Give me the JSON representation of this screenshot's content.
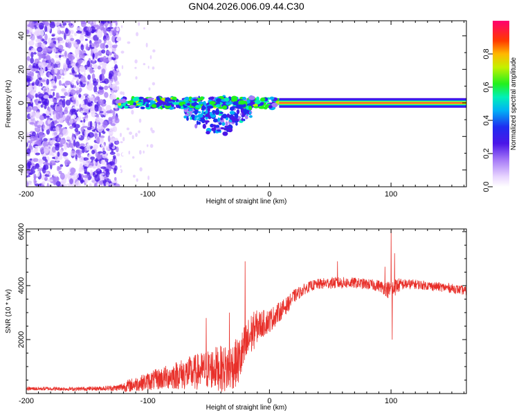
{
  "title": "GN04.2026.006.09.44.C30",
  "colors": {
    "snr_line": "#e8302a",
    "frame": "#000000",
    "noise_purple": "#6a2cf0"
  },
  "chart_data": [
    {
      "type": "heatmap",
      "name": "spectrogram",
      "xlabel": "Height of straight line (km)",
      "ylabel": "Frequency (Hz)",
      "xlim": [
        -200,
        162
      ],
      "ylim": [
        -50,
        49
      ],
      "x_ticks": [
        -200,
        -100,
        0,
        100
      ],
      "x_tick_labels": [
        "-200",
        "-100",
        "0",
        "100"
      ],
      "y_ticks": [
        -40,
        -20,
        0,
        20,
        40
      ],
      "y_tick_labels": [
        "-40",
        "-20",
        "0",
        "20",
        "40"
      ],
      "features": [
        {
          "region": "broadband noise",
          "x_range": [
            -200,
            -125
          ],
          "y_range": [
            -50,
            49
          ],
          "amplitude": 0.2
        },
        {
          "region": "sparse noise",
          "x_range": [
            -125,
            -95
          ],
          "y_range": [
            -50,
            49
          ],
          "amplitude": 0.1
        },
        {
          "region": "carrier onset",
          "x_range": [
            -125,
            8
          ],
          "center_hz": 0,
          "amplitude": 0.5
        },
        {
          "region": "spectral spread",
          "x_range": [
            -70,
            -15
          ],
          "y_range": [
            -18,
            10
          ],
          "amplitude": 0.35
        },
        {
          "region": "steady carrier",
          "x_range": [
            8,
            162
          ],
          "center_hz": 0,
          "amplitude": 1.0
        }
      ],
      "colorbar": {
        "label": "Normalized spectral amplitude",
        "range": [
          0,
          1
        ],
        "ticks": [
          0.0,
          0.2,
          0.4,
          0.6,
          0.8
        ],
        "tick_labels": [
          "0.0",
          "0.2",
          "0.4",
          "0.6",
          "0.8"
        ]
      }
    },
    {
      "type": "line",
      "name": "snr",
      "xlabel": "Height of straight line (km)",
      "ylabel": "SNR (10 * v/v)",
      "xlim": [
        -200,
        162
      ],
      "ylim": [
        0,
        6100
      ],
      "x_ticks": [
        -200,
        -100,
        0,
        100
      ],
      "x_tick_labels": [
        "-200",
        "-100",
        "0",
        "100"
      ],
      "y_ticks": [
        2000,
        4000,
        6000
      ],
      "y_tick_labels": [
        "2000",
        "4000",
        "6000"
      ],
      "series": [
        {
          "name": "SNR",
          "x": [
            -200,
            -180,
            -160,
            -140,
            -125,
            -115,
            -105,
            -95,
            -85,
            -75,
            -65,
            -55,
            -45,
            -35,
            -25,
            -20,
            -15,
            -10,
            -5,
            0,
            5,
            10,
            15,
            20,
            25,
            30,
            35,
            40,
            50,
            60,
            70,
            80,
            90,
            95,
            100,
            105,
            110,
            120,
            130,
            140,
            150,
            162
          ],
          "values": [
            180,
            180,
            170,
            190,
            210,
            300,
            400,
            500,
            600,
            700,
            750,
            850,
            950,
            900,
            1200,
            1700,
            2200,
            2500,
            2600,
            2700,
            2900,
            3100,
            3300,
            3600,
            3750,
            3900,
            4000,
            4050,
            4100,
            4100,
            4100,
            4050,
            4000,
            3900,
            3800,
            4000,
            4050,
            4050,
            4000,
            3950,
            3900,
            3800
          ],
          "noise": [
            70,
            70,
            70,
            80,
            120,
            250,
            300,
            380,
            450,
            550,
            650,
            700,
            800,
            900,
            900,
            900,
            800,
            600,
            500,
            450,
            400,
            350,
            300,
            250,
            220,
            200,
            200,
            200,
            220,
            220,
            200,
            200,
            220,
            250,
            400,
            300,
            200,
            180,
            170,
            170,
            170,
            170
          ],
          "spikes": [
            [
              -20,
              4900
            ],
            [
              -52,
              2800
            ],
            [
              -33,
              3000
            ],
            [
              56,
              4900
            ],
            [
              95,
              4700
            ],
            [
              100,
              6100
            ],
            [
              101,
              2000
            ],
            [
              103,
              5200
            ]
          ]
        }
      ]
    }
  ]
}
